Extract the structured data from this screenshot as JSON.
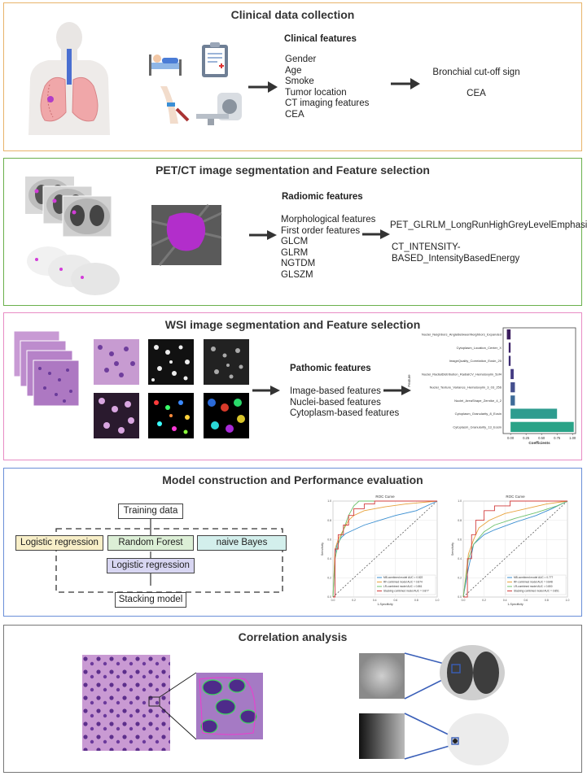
{
  "panel1": {
    "title": "Clinical data collection",
    "features_heading": "Clinical features",
    "features": [
      "Gender",
      "Age",
      "Smoke",
      "Tumor location",
      "CT imaging features",
      "CEA"
    ],
    "selected": [
      "Bronchial cut-off sign",
      "CEA"
    ]
  },
  "panel2": {
    "title": "PET/CT image segmentation and Feature selection",
    "features_heading": "Radiomic features",
    "features": [
      "Morphological features",
      "First order features",
      "GLCM",
      "GLRM",
      "NGTDM",
      "GLSZM"
    ],
    "selected": [
      "PET_GLRLM_LongRunHighGreyLevelEmphasis",
      "CT_INTENSITY-BASED_IntensityBasedEnergy"
    ]
  },
  "panel3": {
    "title": "WSI image segmentation and Feature selection",
    "features_heading": "Pathomic features",
    "features": [
      "Image-based features",
      "Nuclei-based features",
      "Cytoplasm-based features"
    ]
  },
  "coef_chart": {
    "chart_data": {
      "type": "bar",
      "orientation": "horizontal",
      "categories": [
        "Nuclei_Neighbors_AngleBetweenNeighbors_Expanded",
        "Cytoplasm_Location_Center_X",
        "ImageQuality_Correlation_Eosin_20",
        "Nuclei_RadialDistribution_RadialCV_Hematoxylin_5of4",
        "Nuclei_Texture_Variance_Hematoxylin_3_03_256",
        "Nuclei_AreaShape_Zernike_4_2",
        "Cytoplasm_Granularity_8_Eosin",
        "Cytoplasm_Granularity_13_Eosin"
      ],
      "values": [
        -0.06,
        -0.03,
        -0.03,
        0.05,
        0.07,
        0.07,
        0.75,
        1.02
      ],
      "colors": [
        "#3b1d5e",
        "#3a1f66",
        "#3b2a70",
        "#433a82",
        "#45508e",
        "#3e6b98",
        "#2e9c8f",
        "#2aa387"
      ],
      "xlabel": "Coefficients",
      "ylabel": "Feature",
      "xticks": [
        "0.00",
        "0.25",
        "0.50",
        "0.75",
        "1.00"
      ],
      "xlim": [
        -0.12,
        1.05
      ]
    }
  },
  "panel4": {
    "title": "Model construction and Performance evaluation",
    "training": "Training data",
    "base_models": [
      "Logistic regression",
      "Random Forest",
      "naive Bayes"
    ],
    "meta_model": "Logistic regression",
    "stacking": "Stacking model"
  },
  "roc_left": {
    "chart_data": {
      "type": "line",
      "title": "ROC Curve",
      "xlabel": "1-Specificity",
      "ylabel": "Sensitivity",
      "xlim": [
        0,
        1
      ],
      "ylim": [
        0,
        1
      ],
      "ticks": [
        "0.0",
        "0.2",
        "0.4",
        "0.6",
        "0.8",
        "1.0"
      ],
      "legend": "bottom-right",
      "series": [
        {
          "name": "MB-combined model AUC = 0.822",
          "color": "#3b8fd1",
          "x": [
            0,
            0.02,
            0.04,
            0.08,
            0.12,
            0.2,
            0.3,
            0.45,
            0.6,
            0.8,
            1.0
          ],
          "y": [
            0,
            0.45,
            0.55,
            0.62,
            0.66,
            0.7,
            0.75,
            0.8,
            0.85,
            0.9,
            1.0
          ]
        },
        {
          "name": "RF-combined model AUC = 0.874",
          "color": "#e8a23c",
          "x": [
            0,
            0.02,
            0.05,
            0.1,
            0.15,
            0.2,
            0.3,
            0.5,
            0.7,
            1.0
          ],
          "y": [
            0,
            0.5,
            0.6,
            0.7,
            0.8,
            0.85,
            0.9,
            0.94,
            0.97,
            1.0
          ]
        },
        {
          "name": "LR-combined model AUC = 0.861",
          "color": "#6cc06c",
          "x": [
            0,
            0.02,
            0.05,
            0.1,
            0.15,
            0.2,
            0.25,
            0.3,
            1.0
          ],
          "y": [
            0,
            0.4,
            0.55,
            0.7,
            0.85,
            0.95,
            1.0,
            1.0,
            1.0
          ]
        },
        {
          "name": "Stacking-combined model AUC = 0.877",
          "color": "#d23c3c",
          "x": [
            0,
            0.02,
            0.02,
            0.05,
            0.05,
            0.1,
            0.1,
            0.15,
            0.15,
            0.2,
            0.2,
            0.3,
            0.3,
            0.4,
            0.4,
            1.0
          ],
          "y": [
            0,
            0,
            0.5,
            0.5,
            0.65,
            0.65,
            0.75,
            0.75,
            0.85,
            0.85,
            0.92,
            0.92,
            0.97,
            0.97,
            1.0,
            1.0
          ]
        }
      ]
    }
  },
  "roc_right": {
    "chart_data": {
      "type": "line",
      "title": "ROC Curve",
      "xlabel": "1-Specificity",
      "ylabel": "Sensitivity",
      "xlim": [
        0,
        1
      ],
      "ylim": [
        0,
        1
      ],
      "ticks": [
        "0.0",
        "0.2",
        "0.4",
        "0.6",
        "0.8",
        "1.0"
      ],
      "legend": "bottom-right",
      "series": [
        {
          "name": "MB-combined model AUC = 0.777",
          "color": "#3b8fd1",
          "x": [
            0,
            0.05,
            0.1,
            0.2,
            0.3,
            0.5,
            0.7,
            0.85,
            1.0
          ],
          "y": [
            0,
            0.3,
            0.55,
            0.65,
            0.7,
            0.78,
            0.85,
            0.92,
            1.0
          ]
        },
        {
          "name": "RF-combined model AUC = 0.848",
          "color": "#e8a23c",
          "x": [
            0,
            0.05,
            0.1,
            0.15,
            0.25,
            0.4,
            0.6,
            0.8,
            1.0
          ],
          "y": [
            0,
            0.45,
            0.6,
            0.72,
            0.8,
            0.87,
            0.92,
            0.97,
            1.0
          ]
        },
        {
          "name": "LR-combined model AUC = 0.800",
          "color": "#6cc06c",
          "x": [
            0,
            0.05,
            0.1,
            0.2,
            0.3,
            0.5,
            0.7,
            0.9,
            1.0
          ],
          "y": [
            0,
            0.4,
            0.55,
            0.68,
            0.75,
            0.82,
            0.88,
            0.95,
            1.0
          ]
        },
        {
          "name": "Stacking-combined model AUC = 0.851",
          "color": "#d23c3c",
          "x": [
            0,
            0.04,
            0.04,
            0.08,
            0.08,
            0.12,
            0.12,
            0.2,
            0.2,
            0.3,
            0.3,
            0.45,
            0.45,
            1.0
          ],
          "y": [
            0,
            0,
            0.4,
            0.4,
            0.65,
            0.65,
            0.8,
            0.8,
            0.9,
            0.9,
            0.95,
            0.95,
            1.0,
            1.0
          ]
        }
      ]
    }
  },
  "panel5": {
    "title": "Correlation analysis"
  },
  "colors": {
    "panel1_border": "#e8b46a",
    "panel2_border": "#6ab04c",
    "panel3_border": "#e88cc4",
    "panel4_border": "#6a8fd8",
    "panel5_border": "#777777",
    "logistic_fill": "#f8efc8",
    "rf_fill": "#dcefd6",
    "nb_fill": "#d3efec",
    "meta_fill": "#d8d6f2"
  }
}
